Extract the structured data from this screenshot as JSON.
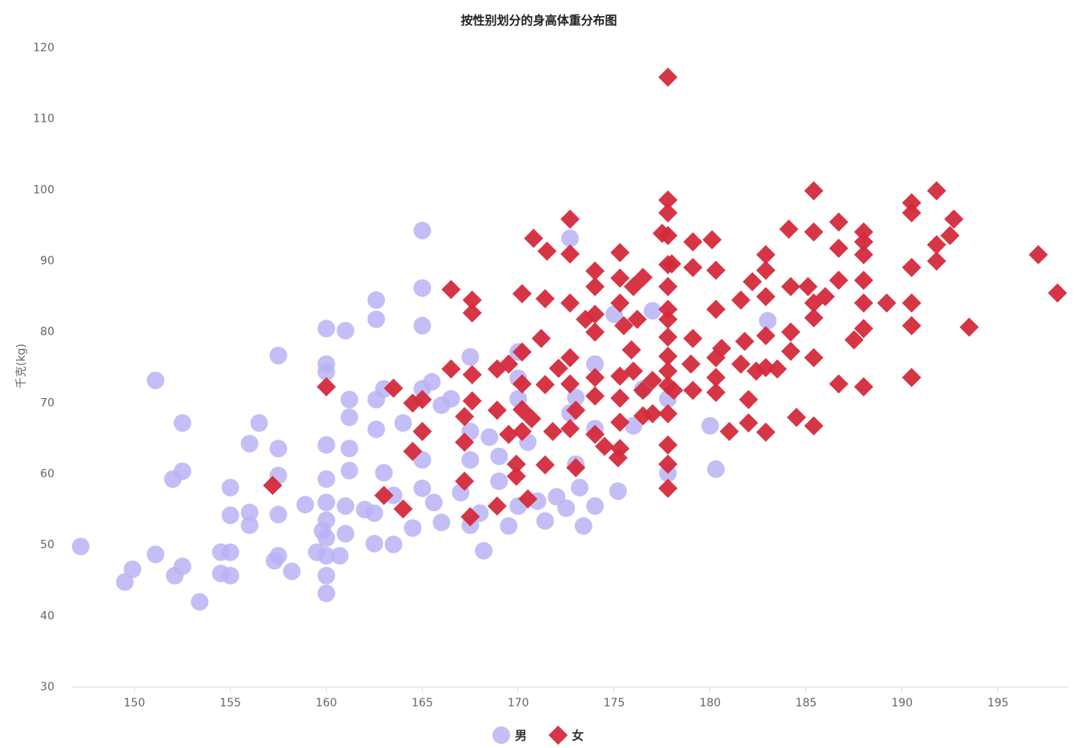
{
  "chart_data": {
    "type": "scatter",
    "title": "按性别划分的身高体重分布图",
    "y_label": "千克(kg)",
    "xlim": [
      146.75,
      198.7
    ],
    "ylim": [
      30,
      120
    ],
    "xticks": [
      150,
      155,
      160,
      165,
      170,
      175,
      180,
      185,
      190,
      195
    ],
    "yticks": [
      30,
      40,
      50,
      60,
      70,
      80,
      90,
      100,
      110,
      120
    ],
    "grid": false,
    "legend": "bottom",
    "series": [
      {
        "name": "男",
        "color": "#b9b3f5",
        "marker": "circle",
        "x": [
          147.2,
          149.5,
          149.9,
          151.1,
          151.1,
          152,
          152.1,
          152.5,
          152.5,
          152.5,
          153.4,
          154.5,
          154.5,
          155,
          155,
          155,
          155,
          156,
          156,
          156,
          157.3,
          157.5,
          157.5,
          157.5,
          156.5,
          157.5,
          157.5,
          158.2,
          158.9,
          159.5,
          159.8,
          160,
          160,
          160,
          160,
          160,
          160,
          160,
          160,
          160,
          160,
          160,
          160.7,
          161,
          161,
          161,
          161.2,
          161.2,
          161.2,
          161.2,
          162,
          162.5,
          162.5,
          162.6,
          162.6,
          162.6,
          162.6,
          163,
          163,
          163.5,
          163.5,
          164,
          164.5,
          165,
          165,
          165,
          165,
          165,
          165,
          165.5,
          165.6,
          166,
          166,
          166.5,
          167,
          167.5,
          167.5,
          167.5,
          167.5,
          168,
          168.2,
          168.5,
          169,
          169,
          169.5,
          170,
          170,
          170,
          170,
          170.5,
          171,
          171.4,
          172,
          172.5,
          172.7,
          172.7,
          173,
          173,
          173.2,
          173.4,
          174,
          174,
          174,
          175.2,
          175,
          176,
          176.5,
          177,
          177.8,
          177.8,
          180,
          180.3,
          183
        ],
        "values": [
          49.8,
          44.8,
          46.6,
          48.7,
          73.2,
          59.3,
          45.7,
          47,
          60.4,
          67.2,
          42,
          46,
          49,
          58.1,
          54.2,
          45.7,
          49,
          54.6,
          52.8,
          64.3,
          47.8,
          48.5,
          76.7,
          63.6,
          67.2,
          59.8,
          54.3,
          46.3,
          55.7,
          49,
          52,
          56,
          53.5,
          51,
          48.5,
          45.7,
          43.2,
          64.1,
          59.3,
          74.4,
          75.5,
          80.5,
          48.5,
          55.5,
          51.6,
          80.2,
          63.6,
          60.5,
          68,
          70.5,
          55,
          50.2,
          54.5,
          66.3,
          70.5,
          84.5,
          81.8,
          60.2,
          72,
          50.1,
          57,
          67.2,
          52.4,
          58,
          62,
          94.3,
          86.2,
          80.9,
          72,
          73,
          56,
          53.2,
          69.7,
          70.6,
          57.4,
          52.8,
          62,
          66,
          76.5,
          54.5,
          49.2,
          65.2,
          62.5,
          59,
          52.7,
          55.5,
          70.6,
          73.5,
          77.2,
          64.5,
          56.2,
          53.4,
          56.8,
          55.2,
          93.2,
          68.6,
          61.4,
          70.8,
          58.1,
          52.7,
          55.5,
          66.4,
          75.5,
          57.6,
          82.5,
          66.8,
          72,
          83,
          60.1,
          70.6,
          66.8,
          60.7,
          81.6
        ]
      },
      {
        "name": "女",
        "color": "#d42a3c",
        "marker": "diamond",
        "x": [
          157.2,
          160,
          163,
          164,
          163.5,
          164.5,
          164.5,
          165,
          165,
          166.5,
          166.5,
          167.2,
          167.2,
          167.2,
          167.5,
          167.6,
          167.6,
          167.6,
          167.6,
          168.9,
          168.9,
          168.9,
          169.5,
          169.5,
          169.9,
          169.9,
          170.2,
          170.2,
          170.2,
          170.2,
          170.2,
          170.5,
          170.7,
          170.8,
          171.5,
          171.2,
          171.4,
          171.4,
          171.4,
          171.8,
          172.1,
          172.7,
          172.7,
          172.7,
          172.7,
          172.7,
          172.7,
          173,
          173,
          173.5,
          174,
          174,
          174,
          174,
          174,
          174,
          174,
          174.5,
          175.2,
          175.3,
          175.3,
          175.3,
          175.3,
          175.3,
          175.3,
          175.3,
          175.5,
          175.9,
          176,
          176,
          176.2,
          176.5,
          176.5,
          176.5,
          177,
          177,
          177.5,
          177.8,
          177.8,
          177.8,
          177.8,
          177.8,
          177.8,
          177.8,
          177.8,
          177.8,
          177.8,
          177.8,
          177.8,
          177.8,
          177.8,
          177.8,
          177.8,
          178.1,
          178,
          179,
          179.1,
          179.1,
          179.1,
          179.1,
          180.1,
          180.3,
          180.3,
          180.3,
          180.3,
          180.3,
          180.6,
          181,
          181.6,
          181.6,
          181.8,
          182,
          182,
          182.2,
          182.4,
          182.9,
          182.9,
          182.9,
          182.9,
          182.9,
          182.9,
          183.5,
          184.1,
          184.2,
          184.2,
          184.2,
          184.5,
          185.1,
          185.4,
          185.4,
          185.4,
          185.4,
          185.4,
          185.4,
          186,
          186.7,
          186.7,
          186.7,
          186.7,
          187.5,
          188,
          188,
          188,
          188,
          188,
          188,
          188,
          189.2,
          190.5,
          190.5,
          190.5,
          190.5,
          190.5,
          190.5,
          191.8,
          191.8,
          191.8,
          192.5,
          192.7,
          193.5,
          197.1,
          198.1
        ],
        "values": [
          58.4,
          72.3,
          57,
          55.1,
          72.1,
          63.2,
          70,
          66,
          70.5,
          86,
          74.8,
          59,
          64.5,
          68.1,
          54,
          70.3,
          74,
          82.7,
          84.5,
          74.8,
          55.5,
          69,
          65.6,
          75.5,
          61.4,
          59.7,
          85.4,
          77.2,
          72.7,
          66,
          69.1,
          56.5,
          67.8,
          93.2,
          91.4,
          79.1,
          84.7,
          72.6,
          61.3,
          66,
          74.9,
          95.9,
          91,
          84.1,
          76.4,
          72.7,
          66.4,
          69,
          60.9,
          81.8,
          88.6,
          86.4,
          82.5,
          80,
          73.6,
          71,
          65.6,
          63.9,
          62.3,
          63.6,
          67.3,
          70.7,
          73.8,
          84.1,
          87.6,
          91.2,
          80.9,
          77.5,
          86.4,
          74.5,
          81.8,
          87.7,
          71.8,
          68.2,
          73.2,
          68.5,
          93.9,
          115.9,
          98.6,
          96.8,
          93.6,
          89.5,
          86.4,
          83.2,
          81.8,
          79.3,
          76.6,
          74.5,
          72.5,
          68.5,
          64.1,
          61.4,
          58,
          71.8,
          89.6,
          75.5,
          89.1,
          92.7,
          71.8,
          79.1,
          93,
          88.7,
          83.2,
          76.4,
          73.6,
          71.5,
          77.7,
          66,
          84.5,
          75.5,
          78.7,
          70.5,
          67.2,
          87.1,
          74.5,
          90.9,
          88.7,
          85,
          79.5,
          75,
          65.9,
          74.8,
          94.5,
          86.4,
          80,
          77.3,
          68,
          86.4,
          99.9,
          94.1,
          84.1,
          82,
          76.4,
          66.8,
          85,
          87.3,
          95.5,
          91.8,
          72.7,
          78.9,
          94.1,
          92.7,
          90.9,
          87.3,
          84.1,
          80.5,
          72.3,
          84.1,
          98.2,
          96.8,
          89.1,
          84.1,
          80.9,
          73.6,
          99.9,
          92.3,
          90,
          93.6,
          95.9,
          80.7,
          90.9,
          85.5
        ]
      }
    ]
  }
}
